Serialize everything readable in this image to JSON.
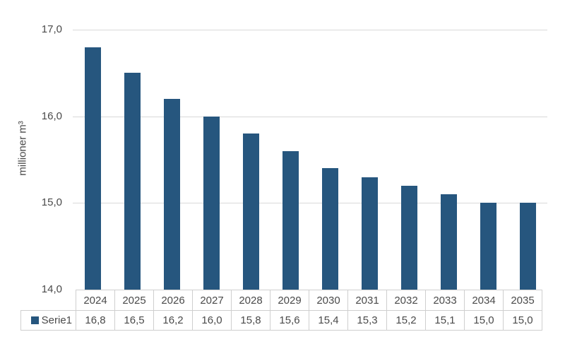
{
  "chart_data": {
    "type": "bar",
    "categories": [
      "2024",
      "2025",
      "2026",
      "2027",
      "2028",
      "2029",
      "2030",
      "2031",
      "2032",
      "2033",
      "2034",
      "2035"
    ],
    "series": [
      {
        "name": "Serie1",
        "values": [
          16.8,
          16.5,
          16.2,
          16.0,
          15.8,
          15.6,
          15.4,
          15.3,
          15.2,
          15.1,
          15.0,
          15.0
        ],
        "value_labels": [
          "16,8",
          "16,5",
          "16,2",
          "16,0",
          "15,8",
          "15,6",
          "15,4",
          "15,3",
          "15,2",
          "15,1",
          "15,0",
          "15,0"
        ]
      }
    ],
    "title": "",
    "xlabel": "",
    "ylabel": "millioner m³",
    "ylim": [
      14,
      17
    ],
    "yticks": [
      {
        "value": 17,
        "label": "17,0"
      },
      {
        "value": 16,
        "label": "16,0"
      },
      {
        "value": 15,
        "label": "15,0"
      },
      {
        "value": 14,
        "label": "14,0"
      }
    ],
    "grid": true,
    "legend_position": "data-table-left",
    "legend_key_icon": "square-icon",
    "bar_color": "#26567e",
    "grid_color": "#d9d9d9",
    "border_color": "#cfcfcf",
    "text_color": "#4a4a4a",
    "background_color": "#ffffff"
  }
}
